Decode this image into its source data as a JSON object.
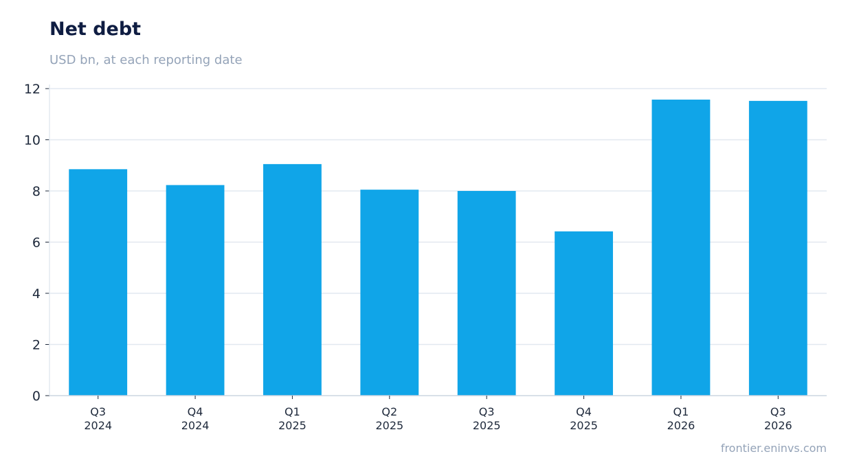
{
  "title": "Net debt",
  "subtitle": "USD bn, at each reporting date",
  "footer": "frontier.eninvs.com",
  "colors": {
    "bar": "#10a5e8",
    "title": "#0f1d42",
    "muted": "#94a3b8",
    "grid": "#e2e8f0"
  },
  "chart_data": {
    "type": "bar",
    "title": "Net debt",
    "subtitle": "USD bn, at each reporting date",
    "categories": [
      [
        "Q3",
        "2024"
      ],
      [
        "Q4",
        "2024"
      ],
      [
        "Q1",
        "2025"
      ],
      [
        "Q2",
        "2025"
      ],
      [
        "Q3",
        "2025"
      ],
      [
        "Q4",
        "2025"
      ],
      [
        "Q1",
        "2026"
      ],
      [
        "Q3",
        "2026"
      ]
    ],
    "values": [
      8.85,
      8.23,
      9.05,
      8.05,
      8.0,
      6.42,
      11.57,
      11.52
    ],
    "ylim": [
      0,
      12
    ],
    "yticks": [
      0,
      2,
      4,
      6,
      8,
      10,
      12
    ],
    "grid": true,
    "legend": false
  }
}
